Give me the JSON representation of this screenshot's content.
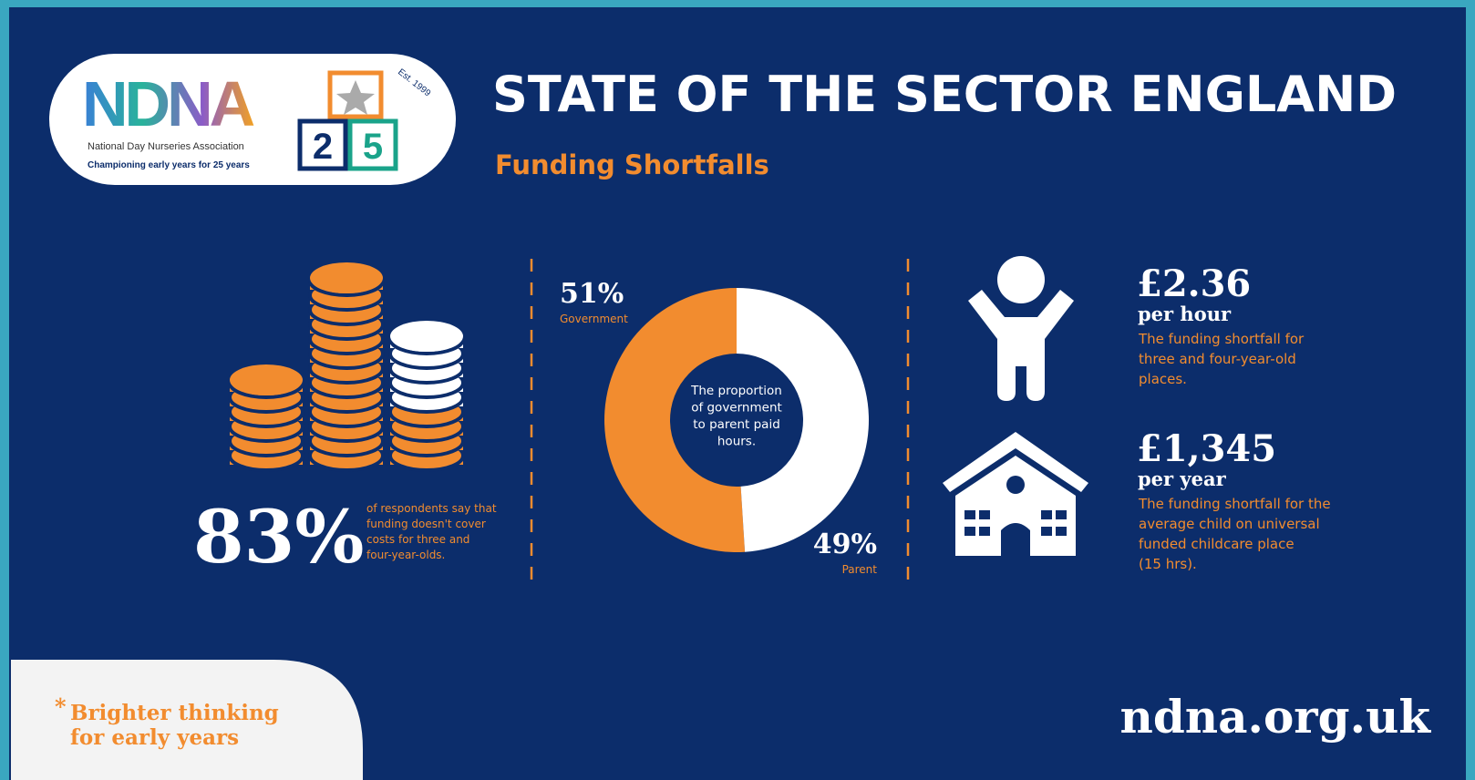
{
  "logo": {
    "name": "NDNA",
    "subtitle": "National Day Nurseries Association",
    "tagline": "Championing early years for 25 years",
    "est": "Est. 1999",
    "blocks": [
      "2",
      "5"
    ]
  },
  "header": {
    "title": "STATE OF THE SECTOR ENGLAND",
    "subtitle": "Funding Shortfalls"
  },
  "stat_left": {
    "value": "83%",
    "lines": [
      "of respondents say that",
      "funding doesn't cover",
      "costs for three and",
      "four-year-olds."
    ]
  },
  "chart_data": {
    "type": "pie",
    "categories": [
      "Government",
      "Parent"
    ],
    "values": [
      51,
      49
    ],
    "value_labels": [
      "51%",
      "49%"
    ],
    "colors": [
      "#f28c2f",
      "#ffffff"
    ],
    "center_label": [
      "The proportion",
      "of government",
      "to parent paid",
      "hours."
    ]
  },
  "stats": [
    {
      "value": "£2.36",
      "unit": "per hour",
      "lines": [
        "The funding shortfall for",
        "three and four-year-old",
        "places."
      ]
    },
    {
      "value": "£1,345",
      "unit": "per year",
      "lines": [
        "The funding shortfall for the",
        "average child on universal",
        "funded childcare place",
        "(15 hrs)."
      ]
    }
  ],
  "footer": {
    "star": "*",
    "slogan": [
      "Brighter thinking",
      "for early years"
    ],
    "url": "ndna.org.uk"
  }
}
